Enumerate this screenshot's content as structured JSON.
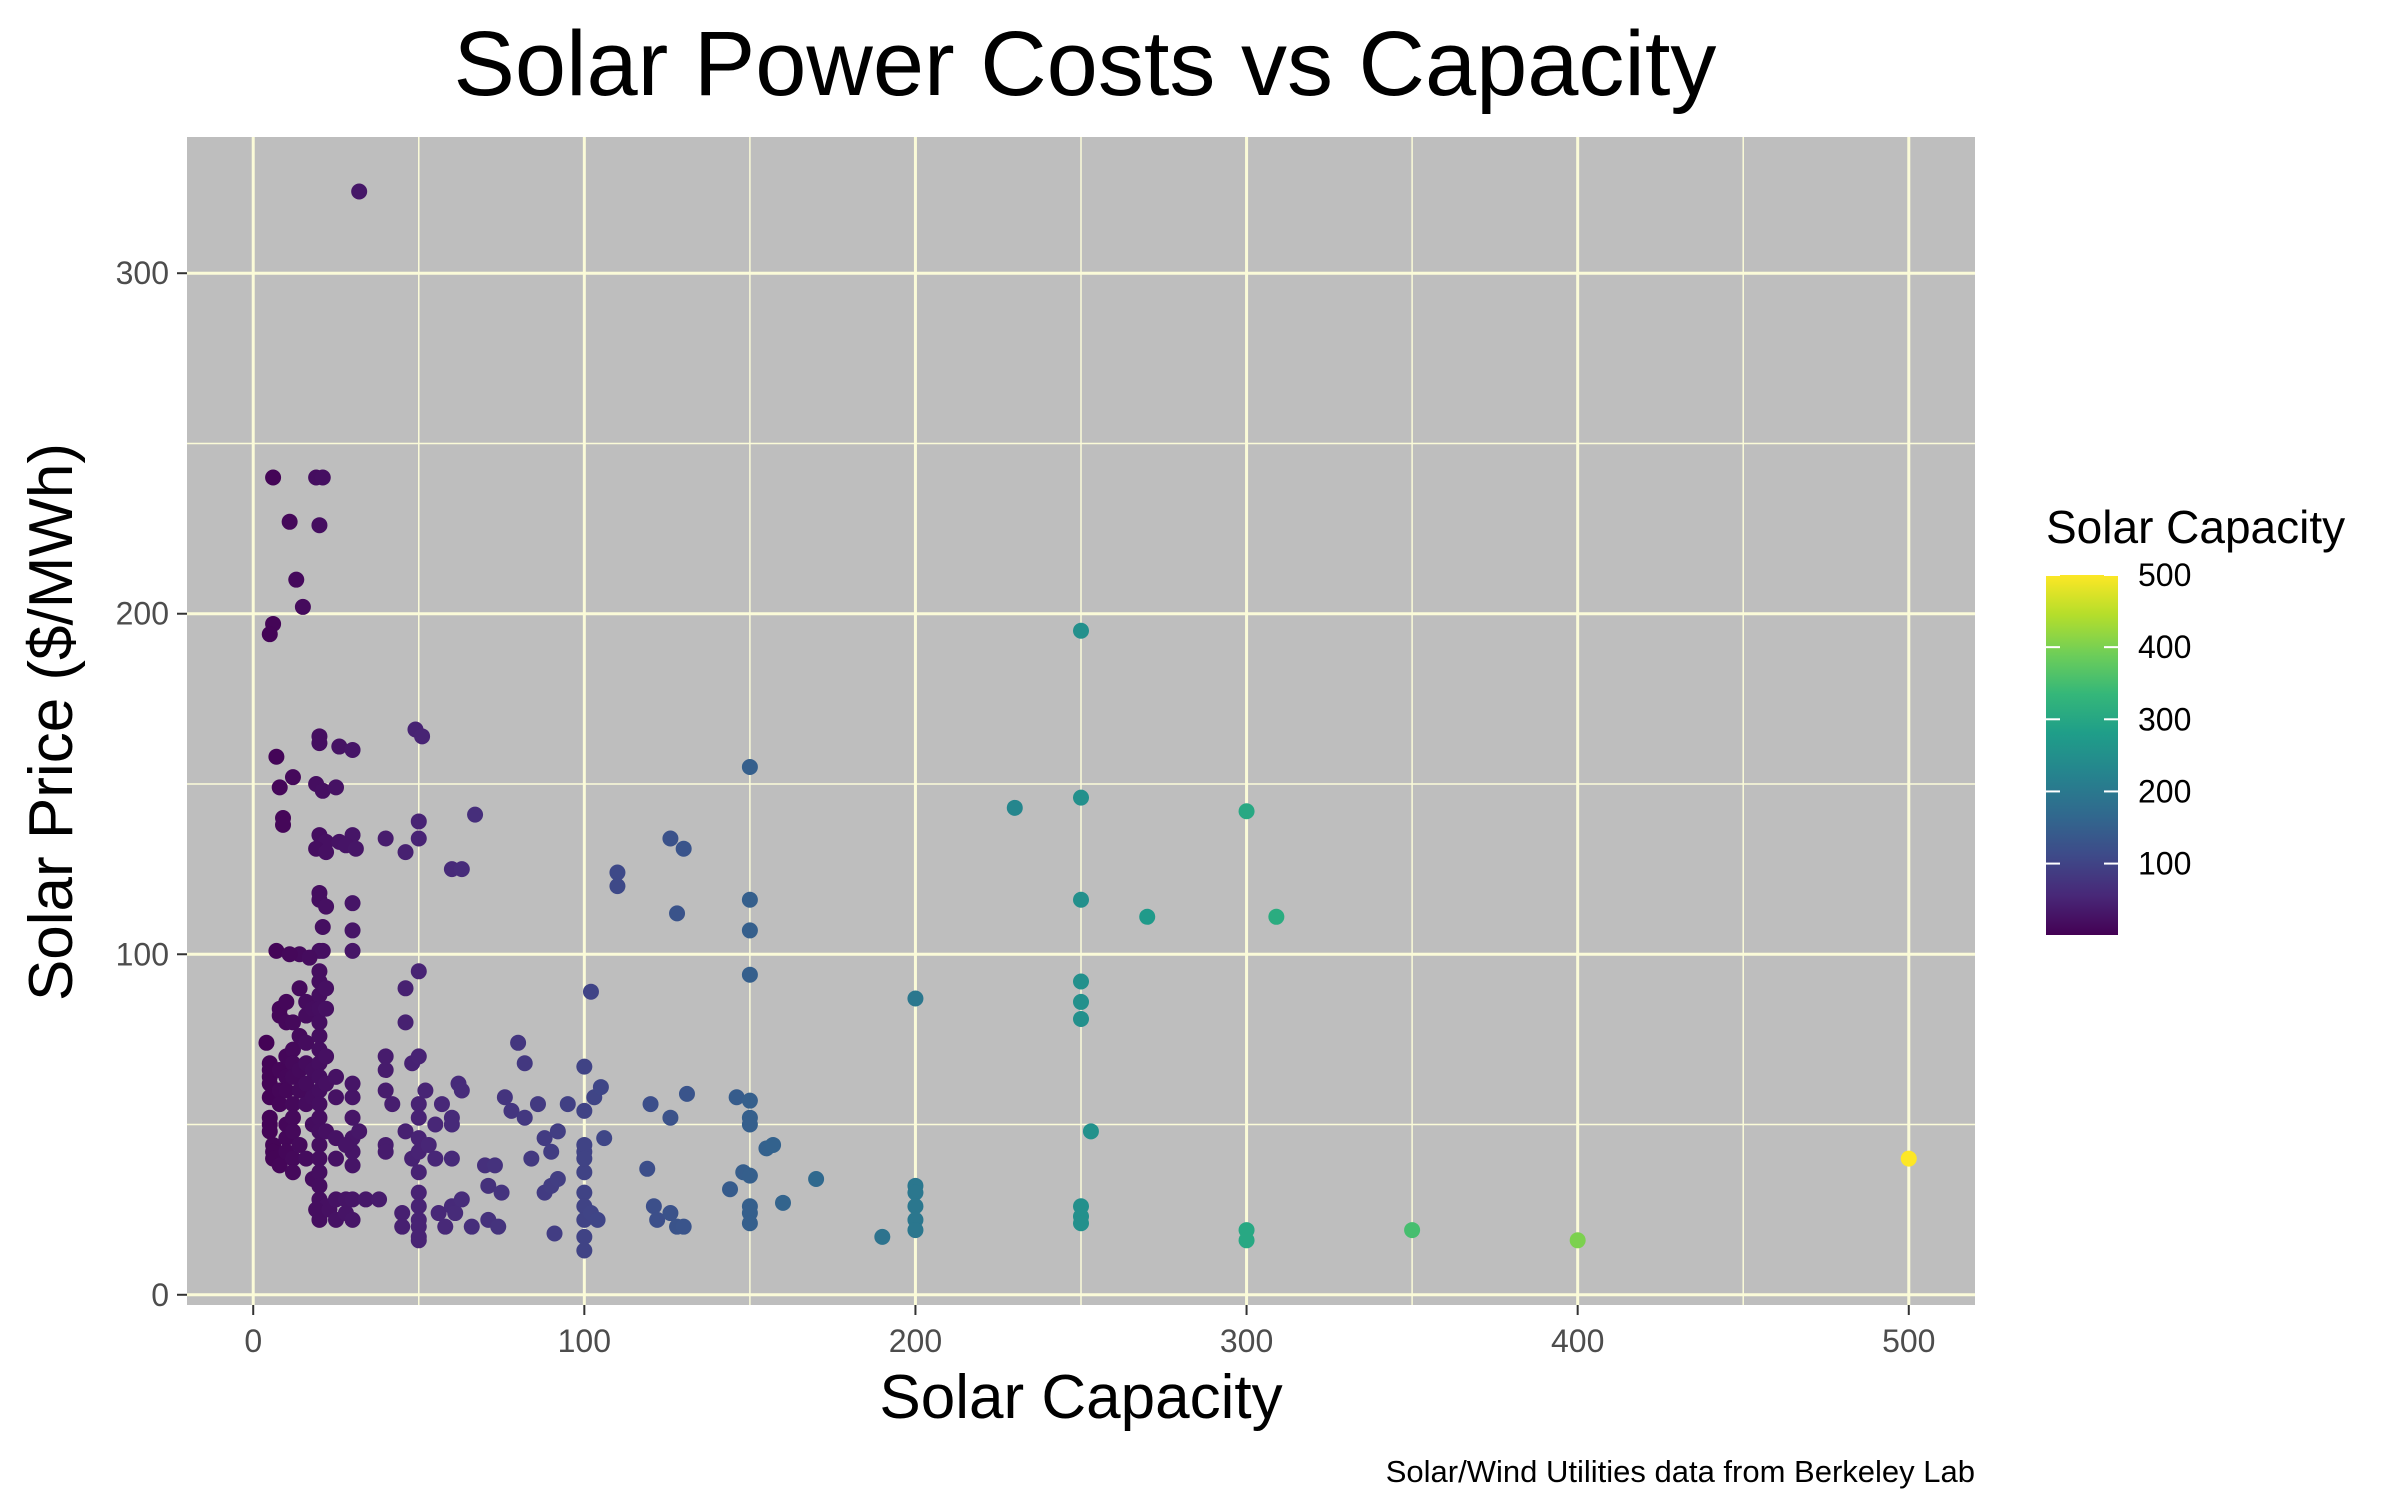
{
  "chart_data": {
    "type": "scatter",
    "title": "Solar Power Costs vs Capacity",
    "xlabel": "Solar Capacity",
    "ylabel": "Solar Price ($/MWh)",
    "caption": "Solar/Wind Utilities data from Berkeley Lab",
    "xlim": [
      -20,
      520
    ],
    "ylim": [
      -3,
      340
    ],
    "x_ticks": [
      0,
      100,
      200,
      300,
      400,
      500
    ],
    "y_ticks": [
      0,
      100,
      200,
      300
    ],
    "x_tick_labels": [
      "0",
      "100",
      "200",
      "300",
      "400",
      "500"
    ],
    "y_tick_labels": [
      "0",
      "100",
      "200",
      "300"
    ],
    "grid": true,
    "panel_color": "#bebebe",
    "grid_color": "#fbfbd8",
    "legend": {
      "title": "Solar Capacity",
      "placement": "right",
      "type": "colorbar",
      "range": [
        1,
        500
      ],
      "breaks": [
        100,
        200,
        300,
        400,
        500
      ],
      "break_labels": [
        "100",
        "200",
        "300",
        "400",
        "500"
      ],
      "palette": [
        "#440154",
        "#482878",
        "#3e4a89",
        "#31688e",
        "#26828e",
        "#1f9e89",
        "#35b779",
        "#6ece58",
        "#b5de2b",
        "#fde725"
      ]
    },
    "points": [
      [
        32,
        324
      ],
      [
        6,
        240
      ],
      [
        19,
        240
      ],
      [
        21,
        240
      ],
      [
        11,
        227
      ],
      [
        20,
        226
      ],
      [
        13,
        210
      ],
      [
        15,
        202
      ],
      [
        6,
        197
      ],
      [
        5,
        194
      ],
      [
        250,
        195
      ],
      [
        49,
        166
      ],
      [
        51,
        164
      ],
      [
        20,
        164
      ],
      [
        20,
        162
      ],
      [
        26,
        161
      ],
      [
        30,
        160
      ],
      [
        7,
        158
      ],
      [
        12,
        152
      ],
      [
        19,
        150
      ],
      [
        8,
        149
      ],
      [
        21,
        148
      ],
      [
        25,
        149
      ],
      [
        150,
        155
      ],
      [
        9,
        140
      ],
      [
        9,
        138
      ],
      [
        30,
        135
      ],
      [
        20,
        135
      ],
      [
        22,
        133
      ],
      [
        26,
        133
      ],
      [
        19,
        131
      ],
      [
        22,
        130
      ],
      [
        28,
        132
      ],
      [
        31,
        131
      ],
      [
        40,
        134
      ],
      [
        46,
        130
      ],
      [
        50,
        139
      ],
      [
        50,
        134
      ],
      [
        60,
        125
      ],
      [
        63,
        125
      ],
      [
        67,
        141
      ],
      [
        110,
        124
      ],
      [
        110,
        120
      ],
      [
        126,
        134
      ],
      [
        130,
        131
      ],
      [
        20,
        118
      ],
      [
        20,
        116
      ],
      [
        22,
        114
      ],
      [
        30,
        115
      ],
      [
        21,
        108
      ],
      [
        30,
        107
      ],
      [
        20,
        101
      ],
      [
        7,
        101
      ],
      [
        14,
        100
      ],
      [
        21,
        101
      ],
      [
        30,
        101
      ],
      [
        17,
        99
      ],
      [
        11,
        100
      ],
      [
        128,
        112
      ],
      [
        150,
        116
      ],
      [
        150,
        107
      ],
      [
        150,
        94
      ],
      [
        102,
        89
      ],
      [
        50,
        95
      ],
      [
        46,
        90
      ],
      [
        230,
        143
      ],
      [
        250,
        146
      ],
      [
        300,
        142
      ],
      [
        250,
        116
      ],
      [
        270,
        111
      ],
      [
        309,
        111
      ],
      [
        200,
        87
      ],
      [
        250,
        92
      ],
      [
        250,
        86
      ],
      [
        250,
        81
      ],
      [
        253,
        48
      ],
      [
        4,
        74
      ],
      [
        5,
        68
      ],
      [
        5,
        66
      ],
      [
        5,
        64
      ],
      [
        5,
        62
      ],
      [
        5,
        58
      ],
      [
        5,
        52
      ],
      [
        5,
        50
      ],
      [
        5,
        48
      ],
      [
        6,
        44
      ],
      [
        6,
        42
      ],
      [
        6,
        40
      ],
      [
        8,
        84
      ],
      [
        8,
        82
      ],
      [
        8,
        66
      ],
      [
        8,
        60
      ],
      [
        8,
        56
      ],
      [
        8,
        38
      ],
      [
        10,
        86
      ],
      [
        10,
        80
      ],
      [
        10,
        70
      ],
      [
        10,
        64
      ],
      [
        10,
        60
      ],
      [
        10,
        50
      ],
      [
        10,
        46
      ],
      [
        10,
        42
      ],
      [
        12,
        80
      ],
      [
        12,
        72
      ],
      [
        12,
        68
      ],
      [
        12,
        64
      ],
      [
        12,
        56
      ],
      [
        12,
        52
      ],
      [
        12,
        48
      ],
      [
        12,
        40
      ],
      [
        12,
        36
      ],
      [
        14,
        90
      ],
      [
        14,
        76
      ],
      [
        14,
        66
      ],
      [
        14,
        60
      ],
      [
        14,
        44
      ],
      [
        16,
        86
      ],
      [
        16,
        82
      ],
      [
        16,
        74
      ],
      [
        16,
        68
      ],
      [
        16,
        62
      ],
      [
        16,
        56
      ],
      [
        16,
        40
      ],
      [
        18,
        84
      ],
      [
        18,
        66
      ],
      [
        18,
        58
      ],
      [
        18,
        50
      ],
      [
        18,
        34
      ],
      [
        20,
        95
      ],
      [
        20,
        92
      ],
      [
        20,
        88
      ],
      [
        20,
        84
      ],
      [
        20,
        80
      ],
      [
        20,
        76
      ],
      [
        20,
        72
      ],
      [
        20,
        68
      ],
      [
        20,
        64
      ],
      [
        20,
        60
      ],
      [
        20,
        56
      ],
      [
        20,
        52
      ],
      [
        20,
        48
      ],
      [
        20,
        44
      ],
      [
        20,
        40
      ],
      [
        20,
        36
      ],
      [
        20,
        32
      ],
      [
        20,
        28
      ],
      [
        20,
        24
      ],
      [
        20,
        22
      ],
      [
        22,
        90
      ],
      [
        22,
        84
      ],
      [
        22,
        70
      ],
      [
        22,
        62
      ],
      [
        22,
        48
      ],
      [
        22,
        26
      ],
      [
        19,
        25
      ],
      [
        23,
        25
      ],
      [
        25,
        22
      ],
      [
        25,
        28
      ],
      [
        28,
        28
      ],
      [
        28,
        24
      ],
      [
        30,
        22
      ],
      [
        30,
        28
      ],
      [
        34,
        28
      ],
      [
        38,
        28
      ],
      [
        25,
        40
      ],
      [
        25,
        46
      ],
      [
        25,
        58
      ],
      [
        25,
        64
      ],
      [
        30,
        38
      ],
      [
        30,
        42
      ],
      [
        30,
        46
      ],
      [
        30,
        52
      ],
      [
        30,
        58
      ],
      [
        30,
        62
      ],
      [
        28,
        44
      ],
      [
        32,
        48
      ],
      [
        40,
        66
      ],
      [
        40,
        70
      ],
      [
        40,
        60
      ],
      [
        40,
        44
      ],
      [
        40,
        42
      ],
      [
        42,
        56
      ],
      [
        45,
        24
      ],
      [
        45,
        20
      ],
      [
        46,
        48
      ],
      [
        46,
        80
      ],
      [
        48,
        68
      ],
      [
        48,
        40
      ],
      [
        50,
        70
      ],
      [
        50,
        56
      ],
      [
        50,
        52
      ],
      [
        50,
        46
      ],
      [
        50,
        42
      ],
      [
        50,
        36
      ],
      [
        50,
        30
      ],
      [
        50,
        26
      ],
      [
        50,
        22
      ],
      [
        50,
        20
      ],
      [
        50,
        17
      ],
      [
        50,
        16
      ],
      [
        52,
        60
      ],
      [
        53,
        44
      ],
      [
        55,
        50
      ],
      [
        55,
        40
      ],
      [
        56,
        24
      ],
      [
        57,
        56
      ],
      [
        58,
        20
      ],
      [
        60,
        52
      ],
      [
        60,
        50
      ],
      [
        60,
        40
      ],
      [
        60,
        26
      ],
      [
        61,
        24
      ],
      [
        62,
        62
      ],
      [
        63,
        60
      ],
      [
        63,
        28
      ],
      [
        66,
        20
      ],
      [
        70,
        38
      ],
      [
        71,
        32
      ],
      [
        71,
        22
      ],
      [
        73,
        38
      ],
      [
        74,
        20
      ],
      [
        75,
        30
      ],
      [
        76,
        58
      ],
      [
        78,
        54
      ],
      [
        80,
        74
      ],
      [
        82,
        68
      ],
      [
        82,
        52
      ],
      [
        84,
        40
      ],
      [
        86,
        56
      ],
      [
        88,
        46
      ],
      [
        88,
        30
      ],
      [
        90,
        42
      ],
      [
        90,
        32
      ],
      [
        92,
        48
      ],
      [
        92,
        34
      ],
      [
        91,
        18
      ],
      [
        95,
        56
      ],
      [
        100,
        67
      ],
      [
        100,
        54
      ],
      [
        100,
        42
      ],
      [
        100,
        36
      ],
      [
        100,
        30
      ],
      [
        100,
        26
      ],
      [
        100,
        22
      ],
      [
        100,
        17
      ],
      [
        100,
        13
      ],
      [
        100,
        44
      ],
      [
        100,
        40
      ],
      [
        102,
        24
      ],
      [
        103,
        58
      ],
      [
        104,
        22
      ],
      [
        105,
        61
      ],
      [
        106,
        46
      ],
      [
        119,
        37
      ],
      [
        120,
        56
      ],
      [
        121,
        26
      ],
      [
        122,
        22
      ],
      [
        126,
        52
      ],
      [
        126,
        24
      ],
      [
        128,
        20
      ],
      [
        130,
        20
      ],
      [
        131,
        59
      ],
      [
        144,
        31
      ],
      [
        146,
        58
      ],
      [
        148,
        36
      ],
      [
        150,
        57
      ],
      [
        150,
        52
      ],
      [
        150,
        50
      ],
      [
        150,
        35
      ],
      [
        150,
        26
      ],
      [
        150,
        24
      ],
      [
        150,
        21
      ],
      [
        155,
        43
      ],
      [
        157,
        44
      ],
      [
        160,
        27
      ],
      [
        170,
        34
      ],
      [
        190,
        17
      ],
      [
        200,
        32
      ],
      [
        200,
        30
      ],
      [
        200,
        26
      ],
      [
        200,
        22
      ],
      [
        200,
        19
      ],
      [
        250,
        26
      ],
      [
        250,
        23
      ],
      [
        250,
        21
      ],
      [
        300,
        19
      ],
      [
        300,
        16
      ],
      [
        350,
        19
      ],
      [
        400,
        16
      ],
      [
        500,
        40
      ]
    ]
  }
}
